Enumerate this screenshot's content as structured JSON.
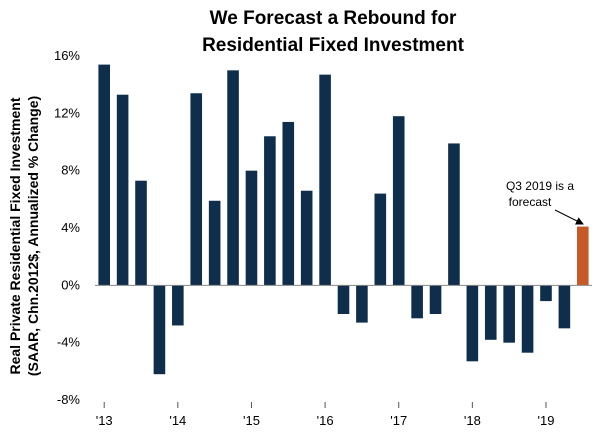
{
  "chart_data": {
    "type": "bar",
    "title_lines": [
      "We Forecast a Rebound for",
      "Residential Fixed Investment"
    ],
    "ylabel_lines": [
      "Real Private Residential Fixed Investment",
      "(SAAR, Chn.2012$, Annualized % Change)"
    ],
    "ylim": [
      -8,
      16
    ],
    "yticks": [
      16,
      12,
      8,
      4,
      0,
      -4,
      -8
    ],
    "ytick_labels": [
      "16%",
      "12%",
      "8%",
      "4%",
      "0%",
      "-4%",
      "-8%"
    ],
    "xtick_labels": [
      {
        "label": "'13",
        "index": 0
      },
      {
        "label": "'14",
        "index": 4
      },
      {
        "label": "'15",
        "index": 8
      },
      {
        "label": "'16",
        "index": 12
      },
      {
        "label": "'17",
        "index": 16
      },
      {
        "label": "'18",
        "index": 20
      },
      {
        "label": "'19",
        "index": 24
      }
    ],
    "categories": [
      "2013 Q1",
      "2013 Q2",
      "2013 Q3",
      "2013 Q4",
      "2014 Q1",
      "2014 Q2",
      "2014 Q3",
      "2014 Q4",
      "2015 Q1",
      "2015 Q2",
      "2015 Q3",
      "2015 Q4",
      "2016 Q1",
      "2016 Q2",
      "2016 Q3",
      "2016 Q4",
      "2017 Q1",
      "2017 Q2",
      "2017 Q3",
      "2017 Q4",
      "2018 Q1",
      "2018 Q2",
      "2018 Q3",
      "2018 Q4",
      "2019 Q1",
      "2019 Q2",
      "2019 Q3"
    ],
    "values": [
      15.4,
      13.3,
      7.3,
      -6.2,
      -2.8,
      13.4,
      5.9,
      15.0,
      8.0,
      10.4,
      11.4,
      6.6,
      14.7,
      -2.0,
      -2.6,
      6.4,
      11.8,
      -2.3,
      -2.0,
      9.9,
      -5.3,
      -3.8,
      -4.0,
      -4.7,
      -1.1,
      -3.0,
      4.1
    ],
    "forecast_index": 26,
    "colors": {
      "actual": "#0f2e4b",
      "forecast": "#c55a28"
    },
    "annotation": {
      "lines": [
        "Q3 2019 is a",
        "forecast"
      ]
    }
  }
}
